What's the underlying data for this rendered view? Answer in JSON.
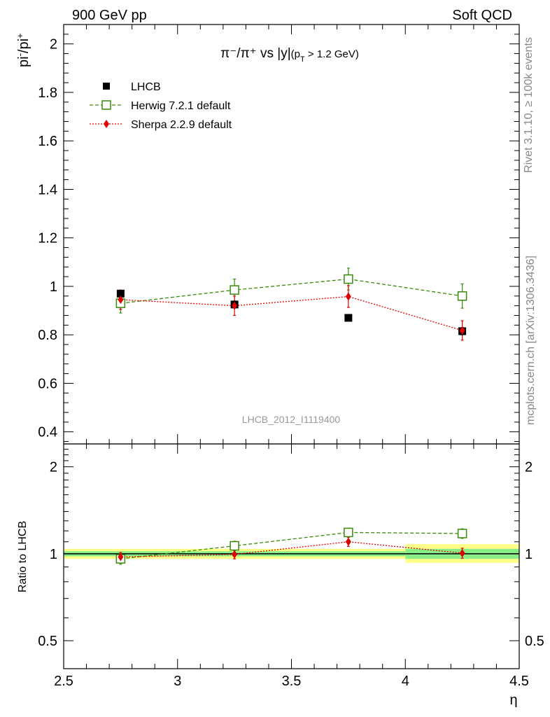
{
  "header": {
    "left": "900 GeV pp",
    "right": "Soft QCD"
  },
  "side_labels": {
    "top": "Rivet 3.1.10, ≥ 100k events",
    "bottom": "mcplots.cern.ch [arXiv:1306.3436]"
  },
  "watermark": "LHCB_2012_I1119400",
  "colors": {
    "data": "#000000",
    "herwig": "#3a8a0a",
    "sherpa": "#e00000",
    "band_inner": "#88ee88",
    "band_outer": "#ffff88"
  },
  "chart_data": [
    {
      "type": "scatter",
      "title": "π⁻/π⁺ vs |y|(p_T > 1.2 GeV)",
      "title_parts": {
        "main": "π⁻/π⁺ vs |y|",
        "cut_pre": "(p",
        "cut_sub": "T",
        "cut_post": " > 1.2 GeV)"
      },
      "ylabel": "pi⁻/pi⁺",
      "ylabel_parts": {
        "base1": "pi",
        "sup1": "-",
        "sep": "/pi",
        "sup2": "+"
      },
      "xlim": [
        2.5,
        4.5
      ],
      "ylim": [
        0.35,
        2.08
      ],
      "yticks": [
        0.4,
        0.6,
        0.8,
        1,
        1.2,
        1.4,
        1.6,
        1.8,
        2
      ],
      "ytick_labels": [
        "0.4",
        "0.6",
        "0.8",
        "1",
        "1.2",
        "1.4",
        "1.6",
        "1.8",
        "2"
      ],
      "legend_position": "top-left",
      "series": [
        {
          "name": "LHCB",
          "marker": "square-filled",
          "x": [
            2.75,
            3.25,
            3.75,
            4.25
          ],
          "y": [
            0.97,
            0.925,
            0.87,
            0.815
          ],
          "yerr": [
            0.01,
            0.01,
            0.01,
            0.015
          ]
        },
        {
          "name": "Herwig 7.2.1 default",
          "marker": "square-open",
          "line": "dashed",
          "x": [
            2.75,
            3.25,
            3.75,
            4.25
          ],
          "y": [
            0.93,
            0.985,
            1.03,
            0.96
          ],
          "yerr": [
            0.04,
            0.045,
            0.045,
            0.05
          ]
        },
        {
          "name": "Sherpa 2.2.9 default",
          "marker": "diamond",
          "line": "dotted",
          "x": [
            2.75,
            3.25,
            3.75,
            4.25
          ],
          "y": [
            0.945,
            0.92,
            0.958,
            0.818
          ],
          "yerr": [
            0.04,
            0.04,
            0.045,
            0.04
          ]
        }
      ]
    },
    {
      "type": "scatter",
      "ylabel": "Ratio to LHCB",
      "xlabel": "η",
      "xlim": [
        2.5,
        4.5
      ],
      "xticks": [
        2.5,
        3,
        3.5,
        4,
        4.5
      ],
      "xtick_labels": [
        "2.5",
        "3",
        "3.5",
        "4",
        "4.5"
      ],
      "ylim": [
        0.4,
        2.4
      ],
      "yscale": "log",
      "yticks": [
        0.5,
        1,
        2
      ],
      "ytick_labels": [
        "0.5",
        "1",
        "2"
      ],
      "bands": [
        {
          "x": [
            2.5,
            3.0
          ],
          "inner": [
            0.98,
            1.02
          ],
          "outer": [
            0.96,
            1.04
          ]
        },
        {
          "x": [
            3.0,
            3.5
          ],
          "inner": [
            0.98,
            1.02
          ],
          "outer": [
            0.96,
            1.04
          ]
        },
        {
          "x": [
            3.5,
            4.0
          ],
          "inner": [
            0.98,
            1.02
          ],
          "outer": [
            0.96,
            1.04
          ]
        },
        {
          "x": [
            4.0,
            4.5
          ],
          "inner": [
            0.96,
            1.04
          ],
          "outer": [
            0.93,
            1.08
          ]
        }
      ],
      "series": [
        {
          "name": "Herwig 7.2.1 default",
          "x": [
            2.75,
            3.25,
            3.75,
            4.25
          ],
          "y": [
            0.96,
            1.065,
            1.185,
            1.175
          ],
          "yerr": [
            0.04,
            0.04,
            0.04,
            0.045
          ]
        },
        {
          "name": "Sherpa 2.2.9 default",
          "x": [
            2.75,
            3.25,
            3.75,
            4.25
          ],
          "y": [
            0.975,
            0.995,
            1.1,
            1.005
          ],
          "yerr": [
            0.035,
            0.035,
            0.04,
            0.04
          ]
        }
      ]
    }
  ]
}
